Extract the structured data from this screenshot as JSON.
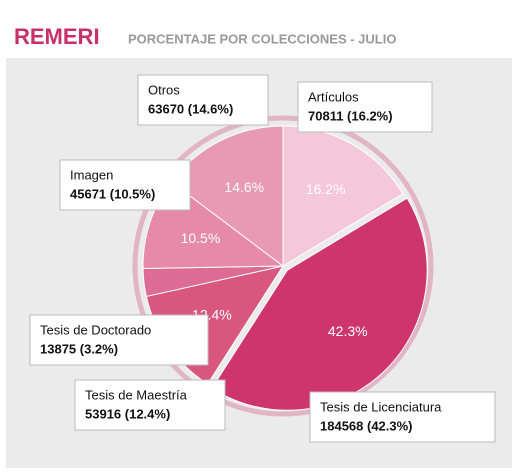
{
  "chart_data": {
    "type": "pie",
    "title": "REMERI",
    "subtitle": "PORCENTAJE POR COLECCIONES - JULIO",
    "categories": [
      "Artículos",
      "Tesis de Licenciatura",
      "Tesis de Maestría",
      "Tesis de Doctorado",
      "Imagen",
      "Otros"
    ],
    "values": [
      70811,
      184568,
      53916,
      13875,
      45671,
      63670
    ],
    "value_labels": [
      "70811 (16.2%)",
      "184568 (42.3%)",
      "53916 (12.4%)",
      "13875 (3.2%)",
      "45671 (10.5%)",
      "63670 (14.6%)"
    ],
    "percentages": [
      16.2,
      42.3,
      12.4,
      3.2,
      10.5,
      14.6
    ],
    "percent_labels": [
      "16.2%",
      "42.3%",
      "12.4%",
      null,
      "10.5%",
      "14.6%"
    ],
    "colors": [
      "#f4c8d8",
      "#cf356d",
      "#d9577f",
      "#dc6c93",
      "#e58aa9",
      "#e899b4"
    ]
  }
}
